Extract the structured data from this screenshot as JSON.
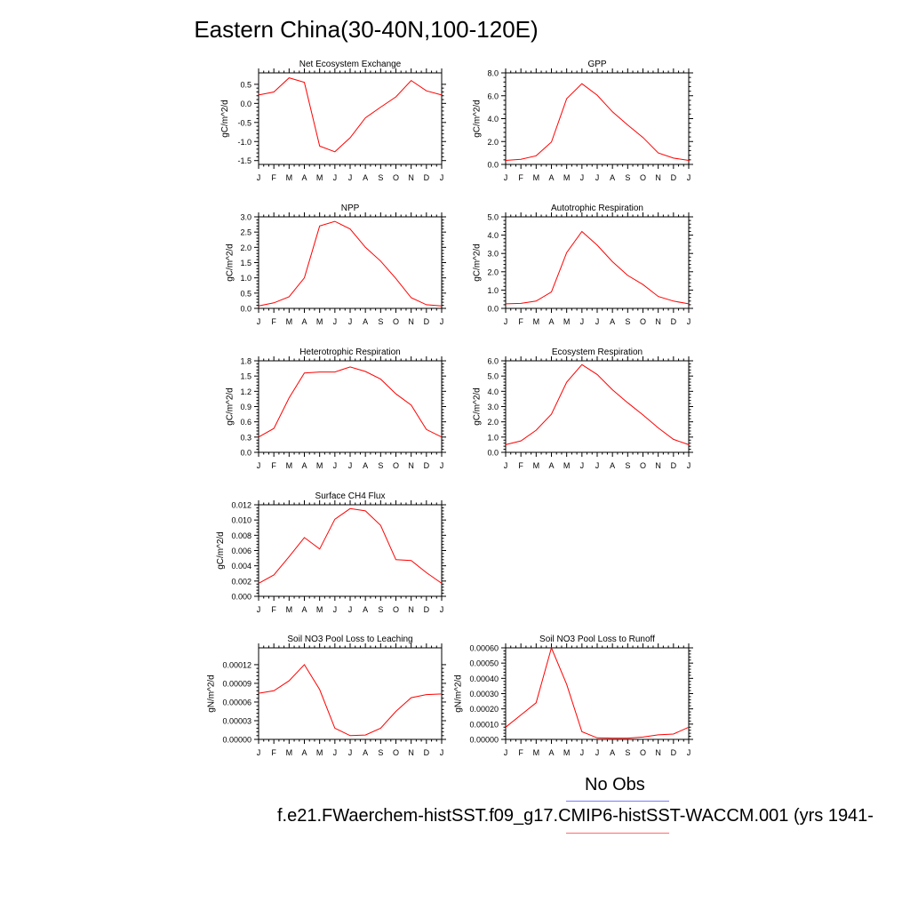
{
  "title": "Eastern China(30-40N,100-120E)",
  "legend": {
    "label": "No Obs"
  },
  "case_label": "f.e21.FWaerchem-histSST.f09_g17.CMIP6-histSST-WACCM.001 (yrs 1941-",
  "colors": {
    "line": "#ff0000",
    "legend_blue": "#7b7bff",
    "legend_red": "#ff6b6b"
  },
  "chart_data": [
    {
      "type": "line",
      "title": "Net Ecosystem Exchange",
      "ylabel": "gC/m^2/d",
      "categories": [
        "J",
        "F",
        "M",
        "A",
        "M",
        "J",
        "J",
        "A",
        "S",
        "O",
        "N",
        "D",
        "J"
      ],
      "ylim": [
        -1.6,
        0.8
      ],
      "yticks": [
        -1.5,
        -1.0,
        -0.5,
        0.0,
        0.5
      ],
      "yticklabels": [
        "-1.5",
        "-1.0",
        "-0.5",
        "0.0",
        "0.5"
      ],
      "values": [
        0.22,
        0.3,
        0.67,
        0.55,
        -1.12,
        -1.27,
        -0.9,
        -0.38,
        -0.1,
        0.17,
        0.6,
        0.33,
        0.22
      ]
    },
    {
      "type": "line",
      "title": "GPP",
      "ylabel": "gC/m^2/d",
      "categories": [
        "J",
        "F",
        "M",
        "A",
        "M",
        "J",
        "J",
        "A",
        "S",
        "O",
        "N",
        "D",
        "J"
      ],
      "ylim": [
        0,
        8
      ],
      "yticks": [
        0,
        2,
        4,
        6,
        8
      ],
      "yticklabels": [
        "0.0",
        "2.0",
        "4.0",
        "6.0",
        "8.0"
      ],
      "values": [
        0.35,
        0.45,
        0.75,
        1.95,
        5.75,
        7.05,
        6.05,
        4.6,
        3.45,
        2.35,
        1.0,
        0.55,
        0.35
      ]
    },
    {
      "type": "line",
      "title": "NPP",
      "ylabel": "gC/m^2/d",
      "categories": [
        "J",
        "F",
        "M",
        "A",
        "M",
        "J",
        "J",
        "A",
        "S",
        "O",
        "N",
        "D",
        "J"
      ],
      "ylim": [
        0,
        3
      ],
      "yticks": [
        0,
        0.5,
        1.0,
        1.5,
        2.0,
        2.5,
        3.0
      ],
      "yticklabels": [
        "0.0",
        "0.5",
        "1.0",
        "1.5",
        "2.0",
        "2.5",
        "3.0"
      ],
      "values": [
        0.08,
        0.18,
        0.38,
        1.0,
        2.7,
        2.85,
        2.6,
        2.0,
        1.55,
        0.98,
        0.35,
        0.12,
        0.08
      ]
    },
    {
      "type": "line",
      "title": "Autotrophic Respiration",
      "ylabel": "gC/m^2/d",
      "categories": [
        "J",
        "F",
        "M",
        "A",
        "M",
        "J",
        "J",
        "A",
        "S",
        "O",
        "N",
        "D",
        "J"
      ],
      "ylim": [
        0,
        5
      ],
      "yticks": [
        0,
        1,
        2,
        3,
        4,
        5
      ],
      "yticklabels": [
        "0.0",
        "1.0",
        "2.0",
        "3.0",
        "4.0",
        "5.0"
      ],
      "values": [
        0.25,
        0.27,
        0.4,
        0.9,
        3.05,
        4.2,
        3.45,
        2.55,
        1.8,
        1.3,
        0.65,
        0.4,
        0.25
      ]
    },
    {
      "type": "line",
      "title": "Heterotrophic Respiration",
      "ylabel": "gC/m^2/d",
      "categories": [
        "J",
        "F",
        "M",
        "A",
        "M",
        "J",
        "J",
        "A",
        "S",
        "O",
        "N",
        "D",
        "J"
      ],
      "ylim": [
        0,
        1.8
      ],
      "yticks": [
        0,
        0.3,
        0.6,
        0.9,
        1.2,
        1.5,
        1.8
      ],
      "yticklabels": [
        "0.0",
        "0.3",
        "0.6",
        "0.9",
        "1.2",
        "1.5",
        "1.8"
      ],
      "values": [
        0.3,
        0.47,
        1.07,
        1.56,
        1.58,
        1.58,
        1.68,
        1.59,
        1.44,
        1.15,
        0.93,
        0.45,
        0.3
      ]
    },
    {
      "type": "line",
      "title": "Ecosystem Respiration",
      "ylabel": "gC/m^2/d",
      "categories": [
        "J",
        "F",
        "M",
        "A",
        "M",
        "J",
        "J",
        "A",
        "S",
        "O",
        "N",
        "D",
        "J"
      ],
      "ylim": [
        0,
        6
      ],
      "yticks": [
        0,
        1,
        2,
        3,
        4,
        5,
        6
      ],
      "yticklabels": [
        "0.0",
        "1.0",
        "2.0",
        "3.0",
        "4.0",
        "5.0",
        "6.0"
      ],
      "values": [
        0.5,
        0.75,
        1.45,
        2.5,
        4.6,
        5.75,
        5.1,
        4.1,
        3.25,
        2.45,
        1.6,
        0.85,
        0.5
      ]
    },
    {
      "type": "line",
      "title": "Surface CH4 Flux",
      "ylabel": "gC/m^2/d",
      "categories": [
        "J",
        "F",
        "M",
        "A",
        "M",
        "J",
        "J",
        "A",
        "S",
        "O",
        "N",
        "D",
        "J"
      ],
      "ylim": [
        0,
        0.012
      ],
      "yticks": [
        0,
        0.002,
        0.004,
        0.006,
        0.008,
        0.01,
        0.012
      ],
      "yticklabels": [
        "0.000",
        "0.002",
        "0.004",
        "0.006",
        "0.008",
        "0.010",
        "0.012"
      ],
      "values": [
        0.0017,
        0.0028,
        0.0052,
        0.0077,
        0.0062,
        0.0101,
        0.0115,
        0.0112,
        0.0093,
        0.0048,
        0.0047,
        0.0031,
        0.0017
      ]
    },
    {
      "type": "line",
      "title": "Soil NO3 Pool Loss to Leaching",
      "ylabel": "gN/m^2/d",
      "categories": [
        "J",
        "F",
        "M",
        "A",
        "M",
        "J",
        "J",
        "A",
        "S",
        "O",
        "N",
        "D",
        "J"
      ],
      "ylim": [
        0,
        0.000147
      ],
      "yticks": [
        0,
        3e-05,
        6e-05,
        9e-05,
        0.00012
      ],
      "yticklabels": [
        "0.00000",
        "0.00003",
        "0.00006",
        "0.00009",
        "0.00012"
      ],
      "values": [
        7.4e-05,
        7.8e-05,
        9.4e-05,
        0.00012,
        8e-05,
        1.8e-05,
        6e-06,
        7e-06,
        1.8e-05,
        4.5e-05,
        6.7e-05,
        7.2e-05,
        7.3e-05
      ]
    },
    {
      "type": "line",
      "title": "Soil NO3 Pool Loss to Runoff",
      "ylabel": "gN/m^2/d",
      "categories": [
        "J",
        "F",
        "M",
        "A",
        "M",
        "J",
        "J",
        "A",
        "S",
        "O",
        "N",
        "D",
        "J"
      ],
      "ylim": [
        0,
        0.0006
      ],
      "yticks": [
        0,
        0.0001,
        0.0002,
        0.0003,
        0.0004,
        0.0005,
        0.0006
      ],
      "yticklabels": [
        "0.00000",
        "0.00010",
        "0.00020",
        "0.00030",
        "0.00040",
        "0.00050",
        "0.00060"
      ],
      "values": [
        8e-05,
        0.00016,
        0.00024,
        0.0006,
        0.00036,
        5e-05,
        1e-05,
        8e-06,
        8e-06,
        1.5e-05,
        3e-05,
        3.5e-05,
        8e-05
      ]
    }
  ]
}
